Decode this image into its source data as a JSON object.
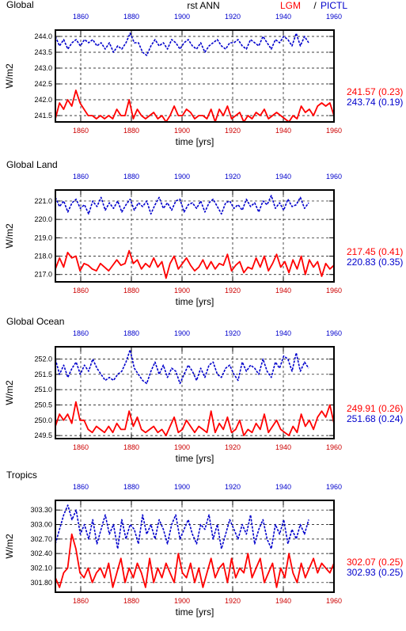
{
  "header": {
    "title": "rst ANN",
    "legend_a": "LGM",
    "legend_sep": "/",
    "legend_b": "PICTL"
  },
  "colors": {
    "lgm": "#ff0000",
    "pictl": "#0000cc",
    "axis": "#000000"
  },
  "x_axis": {
    "label": "time [yrs]",
    "range": [
      1850,
      1960
    ],
    "ticks": [
      1860,
      1880,
      1900,
      1920,
      1940,
      1960
    ]
  },
  "chart_data": [
    {
      "type": "line",
      "title": "Global",
      "ylabel": "W/m2",
      "ylim": [
        241.3,
        244.2
      ],
      "yticks": [
        "241.5",
        "242.0",
        "242.5",
        "243.0",
        "243.5",
        "244.0"
      ],
      "grid": true,
      "series": [
        {
          "name": "LGM",
          "style": "solid",
          "x_start": 1850,
          "x_end": 1960,
          "values": [
            241.4,
            241.9,
            241.7,
            242.0,
            241.8,
            242.3,
            241.9,
            241.7,
            241.5,
            241.5,
            241.4,
            241.5,
            241.4,
            241.5,
            241.4,
            241.7,
            241.5,
            241.5,
            242.0,
            241.4,
            241.7,
            241.5,
            241.4,
            241.5,
            241.6,
            241.4,
            241.5,
            241.3,
            241.5,
            241.8,
            241.5,
            241.5,
            241.7,
            241.6,
            241.4,
            241.5,
            241.5,
            241.4,
            241.7,
            241.3,
            241.7,
            241.5,
            241.8,
            241.4,
            241.5,
            241.6,
            241.3,
            241.5,
            241.4,
            241.6,
            241.5,
            241.7,
            241.4,
            241.5,
            241.6,
            241.5,
            241.4,
            241.3,
            241.5,
            241.4,
            241.8,
            241.6,
            241.7,
            241.5,
            241.8,
            241.9,
            241.8,
            241.9,
            241.5
          ],
          "latest": "241.57 (0.23)"
        },
        {
          "name": "PICTL",
          "style": "dashed",
          "x_start": 1850,
          "x_end": 1950,
          "values": [
            244.0,
            243.7,
            243.9,
            243.6,
            243.8,
            243.9,
            243.7,
            243.9,
            243.8,
            243.9,
            243.7,
            243.8,
            243.6,
            243.8,
            243.5,
            243.7,
            243.6,
            243.8,
            244.1,
            243.8,
            243.8,
            243.5,
            243.4,
            243.7,
            243.9,
            243.7,
            243.8,
            243.6,
            243.9,
            243.8,
            243.6,
            243.8,
            243.9,
            243.7,
            243.6,
            243.8,
            243.5,
            243.7,
            243.8,
            243.9,
            243.7,
            243.6,
            243.8,
            243.8,
            243.9,
            243.7,
            243.6,
            243.9,
            243.8,
            243.7,
            244.0,
            243.8,
            243.6,
            243.9,
            243.8,
            244.0,
            243.9,
            243.7,
            244.1,
            243.7,
            244.0,
            243.8
          ],
          "latest": "243.74 (0.19)"
        }
      ]
    },
    {
      "type": "line",
      "title": "Global Land",
      "ylabel": "W/m2",
      "ylim": [
        216.6,
        221.6
      ],
      "yticks": [
        "217.0",
        "218.0",
        "219.0",
        "220.0",
        "221.0"
      ],
      "grid": true,
      "series": [
        {
          "name": "LGM",
          "style": "solid",
          "x_start": 1850,
          "x_end": 1960,
          "values": [
            217.3,
            217.9,
            217.4,
            218.2,
            217.9,
            218.0,
            217.2,
            217.6,
            217.5,
            217.3,
            217.2,
            217.6,
            217.4,
            217.2,
            217.5,
            217.8,
            217.5,
            217.6,
            218.3,
            217.6,
            217.8,
            217.3,
            217.6,
            217.4,
            217.9,
            217.4,
            217.7,
            216.8,
            217.6,
            218.0,
            217.3,
            217.6,
            217.9,
            217.5,
            217.2,
            217.4,
            217.8,
            217.3,
            217.7,
            217.3,
            217.6,
            217.5,
            218.1,
            217.2,
            217.5,
            217.7,
            217.1,
            217.4,
            217.3,
            217.9,
            217.4,
            218.0,
            217.2,
            217.6,
            218.1,
            217.4,
            217.7,
            217.1,
            217.8,
            217.3,
            218.0,
            217.0,
            217.8,
            217.4,
            217.7,
            216.9,
            217.6,
            217.3,
            217.5
          ],
          "latest": "217.45 (0.41)"
        },
        {
          "name": "PICTL",
          "style": "dashed",
          "x_start": 1850,
          "x_end": 1950,
          "values": [
            221.2,
            220.7,
            221.0,
            220.4,
            220.9,
            221.1,
            220.6,
            220.8,
            220.3,
            221.0,
            220.7,
            221.2,
            220.5,
            220.9,
            220.6,
            221.0,
            220.4,
            220.8,
            221.1,
            220.5,
            220.9,
            220.7,
            221.0,
            220.3,
            220.8,
            221.2,
            220.6,
            220.9,
            220.5,
            221.0,
            221.1,
            220.4,
            220.8,
            220.9,
            220.6,
            221.0,
            220.4,
            220.9,
            221.1,
            220.7,
            220.3,
            220.9,
            221.0,
            220.6,
            220.8,
            220.5,
            221.1,
            220.7,
            220.9,
            220.4,
            221.0,
            220.8,
            221.3,
            220.6,
            220.9,
            220.5,
            221.1,
            220.7,
            220.8,
            221.2,
            220.6,
            220.9
          ],
          "latest": "220.83 (0.35)"
        }
      ]
    },
    {
      "type": "line",
      "title": "Global Ocean",
      "ylabel": "W/m2",
      "ylim": [
        249.4,
        252.4
      ],
      "yticks": [
        "249.5",
        "250.0",
        "250.5",
        "251.0",
        "251.5",
        "252.0"
      ],
      "grid": true,
      "series": [
        {
          "name": "LGM",
          "style": "solid",
          "x_start": 1850,
          "x_end": 1960,
          "values": [
            249.8,
            250.2,
            250.0,
            250.2,
            249.9,
            250.6,
            250.0,
            250.0,
            249.7,
            249.6,
            249.8,
            249.7,
            249.6,
            249.8,
            249.6,
            249.9,
            249.7,
            249.7,
            250.3,
            249.8,
            250.1,
            249.7,
            249.6,
            249.7,
            249.8,
            249.6,
            249.7,
            249.5,
            249.8,
            250.1,
            249.6,
            249.7,
            250.0,
            249.8,
            249.6,
            249.8,
            249.7,
            249.6,
            250.3,
            249.6,
            249.9,
            249.7,
            250.1,
            249.6,
            249.7,
            250.0,
            249.5,
            249.7,
            249.6,
            249.9,
            249.7,
            250.2,
            249.6,
            249.8,
            250.0,
            249.7,
            249.6,
            249.5,
            249.8,
            249.6,
            250.2,
            249.8,
            250.0,
            249.7,
            250.1,
            250.3,
            250.1,
            250.5,
            249.9
          ],
          "latest": "249.91 (0.26)"
        },
        {
          "name": "PICTL",
          "style": "dashed",
          "x_start": 1850,
          "x_end": 1950,
          "values": [
            252.0,
            251.5,
            251.8,
            251.4,
            251.7,
            251.9,
            251.5,
            251.8,
            251.6,
            252.0,
            251.7,
            251.5,
            251.3,
            251.4,
            251.3,
            251.5,
            251.6,
            251.9,
            252.3,
            251.7,
            251.5,
            251.3,
            251.2,
            251.6,
            251.9,
            251.5,
            251.8,
            251.4,
            251.7,
            251.6,
            251.2,
            251.5,
            251.8,
            251.6,
            251.3,
            251.7,
            251.4,
            251.8,
            251.9,
            251.5,
            251.4,
            251.7,
            251.8,
            251.5,
            251.3,
            251.9,
            251.6,
            251.8,
            251.7,
            251.5,
            252.0,
            251.6,
            251.4,
            251.9,
            251.7,
            252.1,
            252.0,
            251.6,
            252.2,
            251.6,
            251.9,
            251.7
          ],
          "latest": "251.68 (0.24)"
        }
      ]
    },
    {
      "type": "line",
      "title": "Tropics",
      "ylabel": "W/m2",
      "ylim": [
        301.6,
        303.5
      ],
      "yticks": [
        "301.80",
        "302.10",
        "302.40",
        "302.70",
        "303.00",
        "303.30"
      ],
      "grid": true,
      "series": [
        {
          "name": "LGM",
          "style": "solid",
          "x_start": 1850,
          "x_end": 1960,
          "values": [
            301.9,
            301.7,
            302.0,
            302.1,
            302.8,
            302.5,
            302.0,
            301.9,
            302.1,
            301.8,
            302.0,
            302.1,
            301.9,
            302.2,
            301.7,
            302.0,
            302.3,
            301.8,
            302.1,
            301.9,
            302.2,
            302.0,
            301.7,
            302.3,
            301.8,
            302.1,
            301.9,
            302.2,
            302.0,
            301.8,
            302.4,
            302.0,
            301.9,
            302.2,
            301.8,
            302.1,
            301.7,
            302.0,
            302.3,
            301.9,
            302.1,
            302.2,
            301.8,
            302.3,
            301.9,
            302.1,
            302.0,
            302.4,
            301.9,
            302.1,
            302.3,
            301.8,
            302.0,
            302.2,
            301.7,
            302.1,
            301.9,
            302.4,
            302.0,
            301.8,
            302.2,
            301.9,
            302.1,
            302.3,
            302.0,
            302.2,
            302.1,
            302.0,
            302.2
          ],
          "latest": "302.07 (0.25)"
        },
        {
          "name": "PICTL",
          "style": "dashed",
          "x_start": 1850,
          "x_end": 1950,
          "values": [
            302.6,
            302.9,
            303.2,
            303.4,
            303.1,
            303.3,
            302.8,
            303.0,
            302.7,
            303.1,
            302.6,
            302.9,
            303.2,
            302.8,
            303.0,
            302.5,
            303.1,
            302.7,
            303.0,
            302.9,
            302.6,
            303.2,
            302.8,
            303.0,
            302.7,
            303.1,
            302.9,
            302.6,
            303.0,
            303.2,
            302.7,
            302.9,
            303.1,
            302.8,
            302.6,
            303.0,
            302.9,
            303.2,
            302.7,
            303.0,
            302.5,
            302.8,
            303.1,
            302.9,
            302.7,
            303.0,
            302.8,
            303.2,
            302.6,
            302.9,
            303.1,
            302.7,
            302.5,
            303.0,
            302.8,
            303.1,
            302.6,
            302.9,
            302.7,
            303.0,
            302.8,
            303.1
          ],
          "latest": "302.93 (0.25)"
        }
      ]
    }
  ]
}
